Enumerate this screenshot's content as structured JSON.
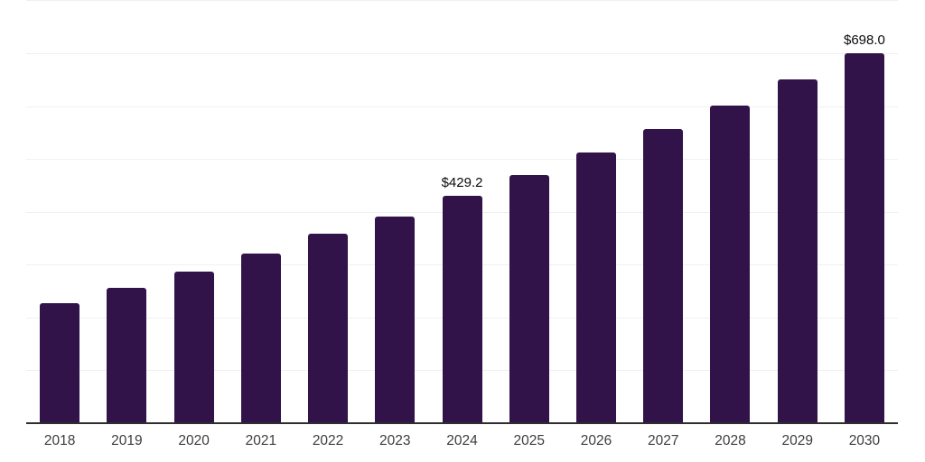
{
  "chart_data": {
    "type": "bar",
    "title": "",
    "xlabel": "",
    "ylabel": "",
    "categories": [
      "2018",
      "2019",
      "2020",
      "2021",
      "2022",
      "2023",
      "2024",
      "2025",
      "2026",
      "2027",
      "2028",
      "2029",
      "2030"
    ],
    "values": [
      226,
      254,
      285,
      319,
      356,
      390,
      429.2,
      468,
      511,
      555,
      600,
      648,
      698
    ],
    "data_labels": {
      "2024": "$429.2",
      "2030": "$698.0"
    },
    "ylim": [
      0,
      800
    ],
    "gridline_step": 100,
    "grid": "horizontal-only",
    "legend": "none",
    "y_axis_labels_visible": false,
    "colors": {
      "bar": "#311349",
      "gridline": "#f0f0f0",
      "axis_line": "#2e2e2e",
      "tick_label": "#3d3d3d",
      "data_label": "#0a0a0a",
      "background": "#ffffff"
    }
  }
}
